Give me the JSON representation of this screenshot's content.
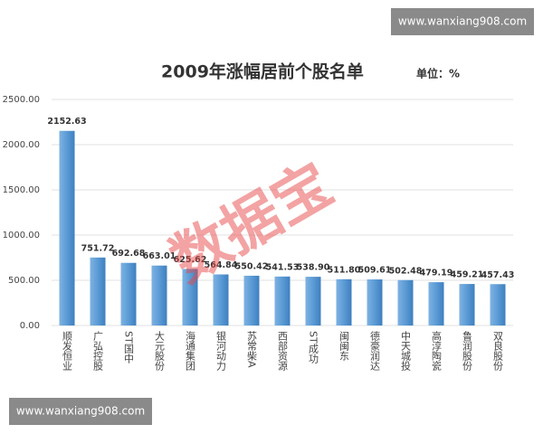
{
  "chart_data": {
    "type": "bar",
    "title": "2009年涨幅居前个股名单",
    "unit_label": "单位：%",
    "watermark_top": "www.wanxiang908.com",
    "watermark_bottom": "www.wanxiang908.com",
    "stamp": "数据宝",
    "categories": [
      "顺发恒业",
      "广弘控股",
      "ST国中",
      "大元股份",
      "海通集团",
      "银河动力",
      "苏常柴A",
      "西部资源",
      "ST成功",
      "闽闽东",
      "德豪润达",
      "中天城投",
      "高淳陶瓷",
      "鲁润股份",
      "双良股份"
    ],
    "values": [
      2152.63,
      751.72,
      692.68,
      663.01,
      625.62,
      564.84,
      550.42,
      541.53,
      538.9,
      511.8,
      509.61,
      502.48,
      479.19,
      459.21,
      457.43
    ],
    "value_labels": [
      "2152.63",
      "751.72",
      "692.68",
      "663.01",
      "625.62",
      "564.84",
      "550.42",
      "541.53",
      "538.90",
      "511.80",
      "509.61",
      "502.48",
      "479.19",
      "459.21",
      "457.43"
    ],
    "color": "#5b9bd5",
    "ylim": [
      0,
      2500
    ],
    "yticks": [
      {
        "value": 0,
        "label": "0.00"
      },
      {
        "value": 500,
        "label": "500.00"
      },
      {
        "value": 1000,
        "label": "1000.00"
      },
      {
        "value": 1500,
        "label": "1500.00"
      },
      {
        "value": 2000,
        "label": "2000.00"
      },
      {
        "value": 2500,
        "label": "2500.00"
      }
    ],
    "grid": true
  }
}
